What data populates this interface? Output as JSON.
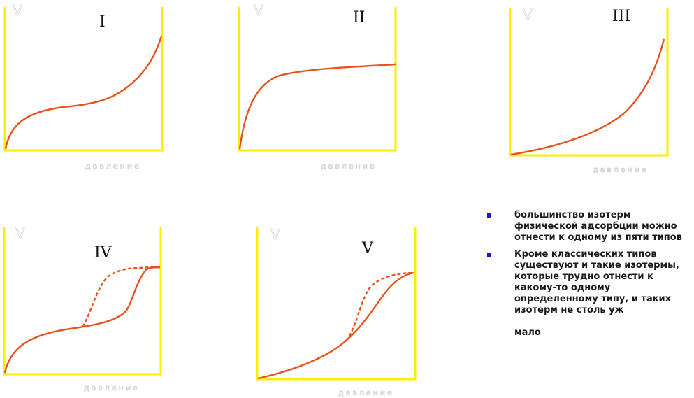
{
  "diagram": {
    "y_axis_label": "V",
    "x_axis_label": "давление",
    "colors": {
      "axis": "#ffee00",
      "curve": "#e8531d",
      "bullet": "#1a1ac8"
    },
    "panels": [
      {
        "type_label": "I",
        "shape": "type-1-isotherm",
        "hysteresis": false
      },
      {
        "type_label": "II",
        "shape": "type-2-isotherm",
        "hysteresis": false
      },
      {
        "type_label": "III",
        "shape": "type-3-isotherm",
        "hysteresis": false
      },
      {
        "type_label": "IV",
        "shape": "type-4-isotherm",
        "hysteresis": true
      },
      {
        "type_label": "V",
        "shape": "type-5-isotherm",
        "hysteresis": true
      }
    ]
  },
  "notes": {
    "items": [
      {
        "text": "большинство изотерм физической адсорбции можно отнести к одному из пяти типов"
      },
      {
        "text": "Кроме классических типов существуют и такие изотермы, которые трудно отнести к какому-то одному определенному типу, и таких изотерм не столь уж",
        "tail": "мало"
      }
    ]
  }
}
